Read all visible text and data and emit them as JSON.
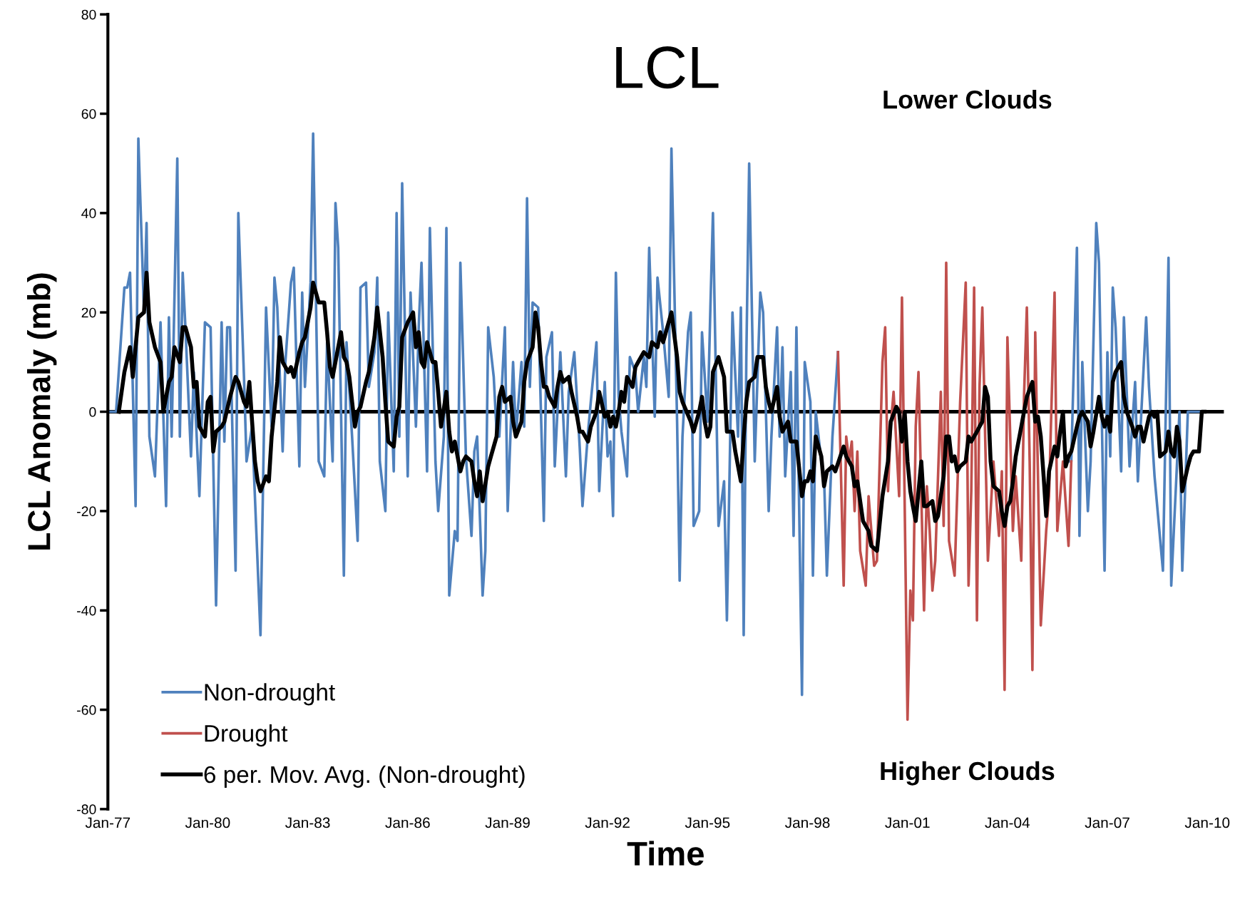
{
  "chart_data": {
    "type": "line",
    "title": "LCL",
    "xlabel": "Time",
    "ylabel": "LCL Anomaly (mb)",
    "annotations": [
      "Lower Clouds",
      "Higher Clouds"
    ],
    "xlim": [
      "1977-01",
      "2010-07"
    ],
    "ylim": [
      -80,
      80
    ],
    "xticks": [
      {
        "value": "1977-01",
        "label": "Jan-77"
      },
      {
        "value": "1980-01",
        "label": "Jan-80"
      },
      {
        "value": "1983-01",
        "label": "Jan-83"
      },
      {
        "value": "1986-01",
        "label": "Jan-86"
      },
      {
        "value": "1989-01",
        "label": "Jan-89"
      },
      {
        "value": "1992-01",
        "label": "Jan-92"
      },
      {
        "value": "1995-01",
        "label": "Jan-95"
      },
      {
        "value": "1998-01",
        "label": "Jan-98"
      },
      {
        "value": "2001-01",
        "label": "Jan-01"
      },
      {
        "value": "2004-01",
        "label": "Jan-04"
      },
      {
        "value": "2007-01",
        "label": "Jan-07"
      },
      {
        "value": "2010-01",
        "label": "Jan-10"
      }
    ],
    "yticks": [
      -80,
      -60,
      -40,
      -20,
      0,
      20,
      40,
      60,
      80
    ],
    "ref_lines": [
      {
        "axis": "y",
        "value": 0,
        "color": "#000000"
      }
    ],
    "grid": false,
    "legend": "bottom left",
    "marker": "none",
    "line_style": "solid",
    "series": [
      {
        "name": "Non-drought",
        "color": "#4f81bd",
        "x": [
          "1977-01",
          "1977-04",
          "1977-07",
          "1977-08",
          "1977-09",
          "1977-11",
          "1977-12",
          "1978-02",
          "1978-03",
          "1978-04",
          "1978-06",
          "1978-08",
          "1978-10",
          "1978-11",
          "1978-12",
          "1979-02",
          "1979-03",
          "1979-04",
          "1979-05",
          "1979-07",
          "1979-08",
          "1979-10",
          "1979-12",
          "1980-02",
          "1980-04",
          "1980-06",
          "1980-07",
          "1980-08",
          "1980-09",
          "1980-11",
          "1980-12",
          "1981-02",
          "1981-03",
          "1981-05",
          "1981-08",
          "1981-10",
          "1981-12",
          "1982-01",
          "1982-02",
          "1982-04",
          "1982-05",
          "1982-07",
          "1982-08",
          "1982-10",
          "1982-11",
          "1982-12",
          "1983-02",
          "1983-03",
          "1983-05",
          "1983-07",
          "1983-08",
          "1983-10",
          "1983-11",
          "1983-12",
          "1984-02",
          "1984-03",
          "1984-05",
          "1984-07",
          "1984-08",
          "1984-10",
          "1984-11",
          "1985-01",
          "1985-02",
          "1985-03",
          "1985-05",
          "1985-06",
          "1985-08",
          "1985-09",
          "1985-10",
          "1985-11",
          "1986-01",
          "1986-02",
          "1986-04",
          "1986-05",
          "1986-06",
          "1986-08",
          "1986-09",
          "1986-11",
          "1986-12",
          "1987-02",
          "1987-03",
          "1987-04",
          "1987-06",
          "1987-07",
          "1987-08",
          "1987-10",
          "1987-12",
          "1988-01",
          "1988-02",
          "1988-04",
          "1988-05",
          "1988-06",
          "1988-08",
          "1988-09",
          "1988-10",
          "1988-12",
          "1989-01",
          "1989-03",
          "1989-04",
          "1989-06",
          "1989-07",
          "1989-08",
          "1989-09",
          "1989-10",
          "1989-12",
          "1990-02",
          "1990-03",
          "1990-05",
          "1990-06",
          "1990-08",
          "1990-10",
          "1990-11",
          "1991-01",
          "1991-03",
          "1991-04",
          "1991-06",
          "1991-07",
          "1991-09",
          "1991-10",
          "1991-12",
          "1992-01",
          "1992-02",
          "1992-03",
          "1992-04",
          "1992-05",
          "1992-06",
          "1992-08",
          "1992-09",
          "1992-11",
          "1992-12",
          "1993-02",
          "1993-03",
          "1993-04",
          "1993-06",
          "1993-07",
          "1993-09",
          "1993-11",
          "1993-12",
          "1994-02",
          "1994-03",
          "1994-04",
          "1994-06",
          "1994-07",
          "1994-08",
          "1994-10",
          "1994-11",
          "1995-01",
          "1995-02",
          "1995-03",
          "1995-05",
          "1995-07",
          "1995-08",
          "1995-10",
          "1995-12",
          "1996-01",
          "1996-02",
          "1996-03",
          "1996-04",
          "1996-06",
          "1996-08",
          "1996-09",
          "1996-11",
          "1996-12",
          "1997-02",
          "1997-03",
          "1997-04",
          "1997-05",
          "1997-07",
          "1997-08",
          "1997-09",
          "1997-11",
          "1997-12",
          "1998-02",
          "1998-03",
          "1998-04",
          "1998-06",
          "1998-07",
          "1998-08",
          "1998-10",
          "1998-12",
          "2002-01",
          "2005-10",
          "2005-12",
          "2006-02",
          "2006-03",
          "2006-04",
          "2006-06",
          "2006-07",
          "2006-09",
          "2006-10",
          "2006-12",
          "2007-01",
          "2007-02",
          "2007-03",
          "2007-04",
          "2007-06",
          "2007-07",
          "2007-09",
          "2007-11",
          "2007-12",
          "2008-03",
          "2008-04",
          "2008-06",
          "2008-09",
          "2008-11",
          "2008-12",
          "2009-03",
          "2009-04",
          "2009-06",
          "2009-11"
        ],
        "values": [
          0,
          0,
          25,
          25,
          28,
          -19,
          55,
          20,
          38,
          -5,
          -13,
          18,
          -19,
          19,
          -5,
          51,
          -5,
          28,
          17,
          -9,
          8,
          -17,
          18,
          17,
          -39,
          18,
          -6,
          17,
          17,
          -32,
          40,
          7,
          -10,
          -3,
          -45,
          21,
          -3,
          27,
          21,
          -8,
          10,
          26,
          29,
          -11,
          24,
          5,
          26,
          56,
          -10,
          -13,
          14,
          -10,
          42,
          33,
          -33,
          14,
          -5,
          -26,
          25,
          26,
          5,
          12,
          27,
          -10,
          -20,
          20,
          -12,
          40,
          -5,
          46,
          -13,
          24,
          -3,
          17,
          30,
          -12,
          37,
          -10,
          -20,
          -5,
          37,
          -37,
          -24,
          -26,
          30,
          -9,
          -25,
          -8,
          -5,
          -37,
          -28,
          17,
          7,
          -4,
          -5,
          17,
          -20,
          10,
          -5,
          10,
          -3,
          43,
          5,
          22,
          21,
          -22,
          11,
          16,
          -11,
          12,
          -13,
          4,
          12,
          -7,
          -19,
          -4,
          2,
          14,
          -16,
          6,
          -9,
          -6,
          -21,
          28,
          3,
          -4,
          -13,
          11,
          8,
          0,
          11,
          5,
          33,
          -1,
          27,
          16,
          3,
          53,
          -2,
          -34,
          -5,
          16,
          20,
          -23,
          -20,
          16,
          -2,
          21,
          40,
          -23,
          -14,
          -42,
          20,
          -5,
          21,
          -45,
          11,
          50,
          -10,
          24,
          20,
          -20,
          -5,
          17,
          -5,
          13,
          -13,
          8,
          -25,
          17,
          -57,
          10,
          2,
          -33,
          0,
          -10,
          -13,
          -33,
          -5,
          12,
          null,
          -10,
          -10,
          33,
          -25,
          10,
          -20,
          -10,
          38,
          30,
          -32,
          12,
          -9,
          25,
          17,
          -12,
          19,
          -11,
          6,
          -14,
          19,
          5,
          -13,
          -32,
          31,
          -35,
          0,
          -32,
          0,
          0
        ]
      },
      {
        "name": "Drought",
        "color": "#c0504d",
        "x": [
          "1998-12",
          "1999-02",
          "1999-03",
          "1999-04",
          "1999-05",
          "1999-06",
          "1999-07",
          "1999-08",
          "1999-10",
          "1999-11",
          "2000-01",
          "2000-02",
          "2000-04",
          "2000-05",
          "2000-06",
          "2000-07",
          "2000-08",
          "2000-10",
          "2000-11",
          "2001-01",
          "2001-02",
          "2001-03",
          "2001-04",
          "2001-05",
          "2001-07",
          "2001-08",
          "2001-09",
          "2001-10",
          "2001-11",
          "2002-01",
          "2002-02",
          "2002-03",
          "2002-04",
          "2002-06",
          "2002-08",
          "2002-10",
          "2002-11",
          "2002-12",
          "2003-01",
          "2003-02",
          "2003-03",
          "2003-04",
          "2003-06",
          "2003-07",
          "2003-08",
          "2003-10",
          "2003-11",
          "2003-12",
          "2004-01",
          "2004-03",
          "2004-04",
          "2004-06",
          "2004-07",
          "2004-08",
          "2004-09",
          "2004-10",
          "2004-11",
          "2005-01",
          "2005-03",
          "2005-04",
          "2005-06",
          "2005-07",
          "2005-09",
          "2005-11",
          "2005-12"
        ],
        "values": [
          12,
          -35,
          -5,
          -10,
          -6,
          -20,
          -8,
          -28,
          -35,
          -17,
          -31,
          -30,
          10,
          17,
          -16,
          -3,
          4,
          -17,
          23,
          -62,
          -36,
          -42,
          -3,
          8,
          -40,
          -15,
          -24,
          -36,
          -30,
          4,
          -23,
          30,
          -26,
          -33,
          2,
          26,
          -35,
          -16,
          25,
          -42,
          5,
          21,
          -30,
          -20,
          -10,
          -25,
          -12,
          -56,
          15,
          -24,
          -13,
          -30,
          3,
          21,
          -10,
          -52,
          16,
          -43,
          -24,
          -17,
          24,
          -24,
          -10,
          -27,
          -10
        ]
      },
      {
        "name": "6 per. Mov. Avg. (Non-drought)",
        "color": "#000000",
        "x": [
          "1977-05",
          "1977-07",
          "1977-09",
          "1977-10",
          "1977-12",
          "1978-02",
          "1978-03",
          "1978-04",
          "1978-06",
          "1978-08",
          "1978-09",
          "1978-11",
          "1978-12",
          "1979-01",
          "1979-03",
          "1979-04",
          "1979-05",
          "1979-07",
          "1979-08",
          "1979-09",
          "1979-10",
          "1979-12",
          "1980-01",
          "1980-02",
          "1980-03",
          "1980-04",
          "1980-06",
          "1980-07",
          "1980-09",
          "1980-11",
          "1980-12",
          "1981-02",
          "1981-03",
          "1981-04",
          "1981-05",
          "1981-06",
          "1981-07",
          "1981-08",
          "1981-10",
          "1981-11",
          "1981-12",
          "1982-02",
          "1982-03",
          "1982-04",
          "1982-06",
          "1982-07",
          "1982-08",
          "1982-10",
          "1982-11",
          "1982-12",
          "1983-02",
          "1983-03",
          "1983-05",
          "1983-07",
          "1983-08",
          "1983-09",
          "1983-10",
          "1983-12",
          "1984-01",
          "1984-02",
          "1984-03",
          "1984-04",
          "1984-06",
          "1984-07",
          "1984-08",
          "1984-10",
          "1984-11",
          "1985-01",
          "1985-02",
          "1985-04",
          "1985-05",
          "1985-06",
          "1985-08",
          "1985-09",
          "1985-10",
          "1985-11",
          "1986-01",
          "1986-02",
          "1986-03",
          "1986-04",
          "1986-05",
          "1986-06",
          "1986-07",
          "1986-08",
          "1986-10",
          "1986-11",
          "1986-12",
          "1987-01",
          "1987-03",
          "1987-04",
          "1987-05",
          "1987-06",
          "1987-08",
          "1987-09",
          "1987-10",
          "1987-12",
          "1988-01",
          "1988-02",
          "1988-03",
          "1988-04",
          "1988-06",
          "1988-07",
          "1988-09",
          "1988-10",
          "1988-11",
          "1988-12",
          "1989-02",
          "1989-03",
          "1989-04",
          "1989-06",
          "1989-07",
          "1989-08",
          "1989-10",
          "1989-11",
          "1989-12",
          "1990-01",
          "1990-02",
          "1990-03",
          "1990-04",
          "1990-06",
          "1990-07",
          "1990-08",
          "1990-09",
          "1990-11",
          "1990-12",
          "1991-02",
          "1991-03",
          "1991-04",
          "1991-05",
          "1991-06",
          "1991-07",
          "1991-09",
          "1991-10",
          "1991-12",
          "1992-01",
          "1992-02",
          "1992-03",
          "1992-04",
          "1992-05",
          "1992-06",
          "1992-07",
          "1992-08",
          "1992-10",
          "1992-11",
          "1992-12",
          "1993-02",
          "1993-04",
          "1993-05",
          "1993-07",
          "1993-08",
          "1993-09",
          "1993-10",
          "1993-12",
          "1994-02",
          "1994-03",
          "1994-04",
          "1994-07",
          "1994-08",
          "1994-10",
          "1994-11",
          "1994-12",
          "1995-01",
          "1995-02",
          "1995-03",
          "1995-05",
          "1995-07",
          "1995-08",
          "1995-10",
          "1995-11",
          "1996-01",
          "1996-02",
          "1996-03",
          "1996-04",
          "1996-06",
          "1996-07",
          "1996-09",
          "1996-10",
          "1996-11",
          "1996-12",
          "1997-02",
          "1997-03",
          "1997-04",
          "1997-06",
          "1997-07",
          "1997-09",
          "1997-11",
          "1997-12",
          "1998-01",
          "1998-02",
          "1998-03",
          "1998-04",
          "1998-06",
          "1998-07",
          "1998-08",
          "1998-10",
          "1998-11",
          "1999-02",
          "1999-03",
          "1999-05",
          "1999-06",
          "1999-07",
          "1999-09",
          "1999-11",
          "1999-12",
          "2000-02",
          "2000-04",
          "2000-06",
          "2000-07",
          "2000-09",
          "2000-10",
          "2000-11",
          "2000-12",
          "2001-01",
          "2001-02",
          "2001-03",
          "2001-04",
          "2001-06",
          "2001-07",
          "2001-08",
          "2001-10",
          "2001-11",
          "2001-12",
          "2002-02",
          "2002-03",
          "2002-04",
          "2002-05",
          "2002-06",
          "2002-07",
          "2002-08",
          "2002-10",
          "2002-11",
          "2002-12",
          "2003-02",
          "2003-03",
          "2003-04",
          "2003-05",
          "2003-06",
          "2003-07",
          "2003-08",
          "2003-10",
          "2003-11",
          "2003-12",
          "2004-01",
          "2004-02",
          "2004-03",
          "2004-04",
          "2004-06",
          "2004-07",
          "2004-08",
          "2004-10",
          "2004-11",
          "2004-12",
          "2005-01",
          "2005-02",
          "2005-03",
          "2005-04",
          "2005-06",
          "2005-07",
          "2005-08",
          "2005-09",
          "2005-10",
          "2005-11",
          "2005-12",
          "2006-02",
          "2006-03",
          "2006-04",
          "2006-05",
          "2006-06",
          "2006-07",
          "2006-08",
          "2006-10",
          "2006-11",
          "2006-12",
          "2007-01",
          "2007-02",
          "2007-03",
          "2007-04",
          "2007-06",
          "2007-07",
          "2007-08",
          "2007-10",
          "2007-11",
          "2007-12",
          "2008-01",
          "2008-02",
          "2008-04",
          "2008-05",
          "2008-06",
          "2008-07",
          "2008-08",
          "2008-10",
          "2008-11",
          "2008-12",
          "2009-01",
          "2009-02",
          "2009-03",
          "2009-04",
          "2009-06",
          "2009-07",
          "2009-08",
          "2009-10",
          "2009-11",
          "2009-12"
        ],
        "values": [
          0,
          8,
          13,
          7,
          19,
          20,
          28,
          18,
          13,
          10,
          0,
          6,
          7,
          13,
          10,
          17,
          17,
          13,
          5,
          6,
          -3,
          -5,
          2,
          3,
          -8,
          -4,
          -3,
          -2,
          3,
          7,
          6,
          2,
          1,
          6,
          -2,
          -10,
          -14,
          -16,
          -13,
          -14,
          -5,
          6,
          15,
          10,
          8,
          9,
          7,
          12,
          14,
          15,
          21,
          26,
          22,
          22,
          16,
          9,
          7,
          13,
          16,
          11,
          10,
          7,
          -3,
          0,
          1,
          6,
          8,
          15,
          21,
          11,
          2,
          -6,
          -7,
          -1,
          1,
          15,
          18,
          19,
          20,
          13,
          16,
          10,
          9,
          14,
          10,
          10,
          4,
          -3,
          4,
          -4,
          -8,
          -6,
          -12,
          -10,
          -9,
          -10,
          -14,
          -17,
          -12,
          -18,
          -11,
          -9,
          -5,
          3,
          5,
          2,
          3,
          -2,
          -5,
          -2,
          6,
          10,
          13,
          20,
          17,
          10,
          5,
          5,
          3,
          1,
          5,
          8,
          6,
          7,
          4,
          -1,
          -4,
          -4,
          -5,
          -6,
          -3,
          0,
          4,
          -1,
          0,
          -3,
          -1,
          -3,
          0,
          4,
          2,
          7,
          5,
          9,
          10,
          12,
          11,
          14,
          13,
          16,
          14,
          16,
          20,
          11,
          4,
          2,
          -2,
          -4,
          0,
          3,
          -2,
          -5,
          -3,
          8,
          11,
          7,
          -4,
          -4,
          -8,
          -14,
          -5,
          2,
          6,
          7,
          11,
          11,
          5,
          2,
          0,
          5,
          -1,
          -4,
          -2,
          -6,
          -6,
          -17,
          -14,
          -14,
          -12,
          -14,
          -5,
          -9,
          -15,
          -12,
          -11,
          -12,
          -7,
          -9,
          -11,
          -15,
          -14,
          -22,
          -24,
          -27,
          -28,
          -17,
          -10,
          -2,
          1,
          0,
          -6,
          0,
          -10,
          -16,
          -19,
          -22,
          -10,
          -19,
          -19,
          -18,
          -22,
          -21,
          -13,
          -5,
          -5,
          -10,
          -9,
          -12,
          -11,
          -10,
          -5,
          -6,
          -4,
          -3,
          -2,
          5,
          3,
          -10,
          -15,
          -16,
          -20,
          -23,
          -19,
          -18,
          -14,
          -9,
          -3,
          0,
          3,
          6,
          -2,
          -1,
          -5,
          -13,
          -21,
          -12,
          -7,
          -9,
          -4,
          0,
          -11,
          -9,
          -8,
          -3,
          -1,
          0,
          -1,
          -2,
          -7,
          -4,
          3,
          -1,
          -3,
          -1,
          -4,
          6,
          8,
          10,
          3,
          0,
          -3,
          -5,
          -3,
          -3,
          -6,
          -1,
          0,
          -1,
          0,
          -9,
          -8,
          -4,
          -8,
          -9,
          -3,
          -6,
          -16,
          -11,
          -9,
          -8,
          -8,
          0,
          0
        ]
      }
    ]
  }
}
